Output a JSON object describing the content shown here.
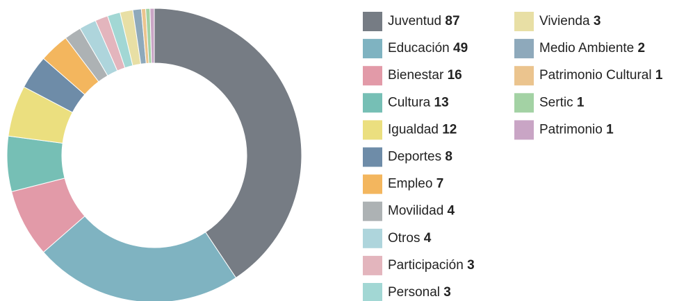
{
  "chart_data": {
    "type": "pie",
    "categories": [
      "Juventud",
      "Educación",
      "Bienestar",
      "Cultura",
      "Igualdad",
      "Deportes",
      "Empleo",
      "Movilidad",
      "Otros",
      "Participación",
      "Personal",
      "Vivienda",
      "Medio Ambiente",
      "Patrimonio Cultural",
      "Sertic",
      "Patrimonio"
    ],
    "values": [
      87,
      49,
      16,
      13,
      12,
      8,
      7,
      4,
      4,
      3,
      3,
      3,
      2,
      1,
      1,
      1
    ],
    "colors": [
      "#767c84",
      "#7fb3c1",
      "#e29aa8",
      "#76bfb5",
      "#ebdf7f",
      "#6e8ca8",
      "#f3b65e",
      "#adb2b4",
      "#aed5dc",
      "#e3b5bd",
      "#a2d7d4",
      "#e8dfa5",
      "#8ea9bb",
      "#ebc48e",
      "#a3d2a4",
      "#c9a5c5"
    ]
  }
}
